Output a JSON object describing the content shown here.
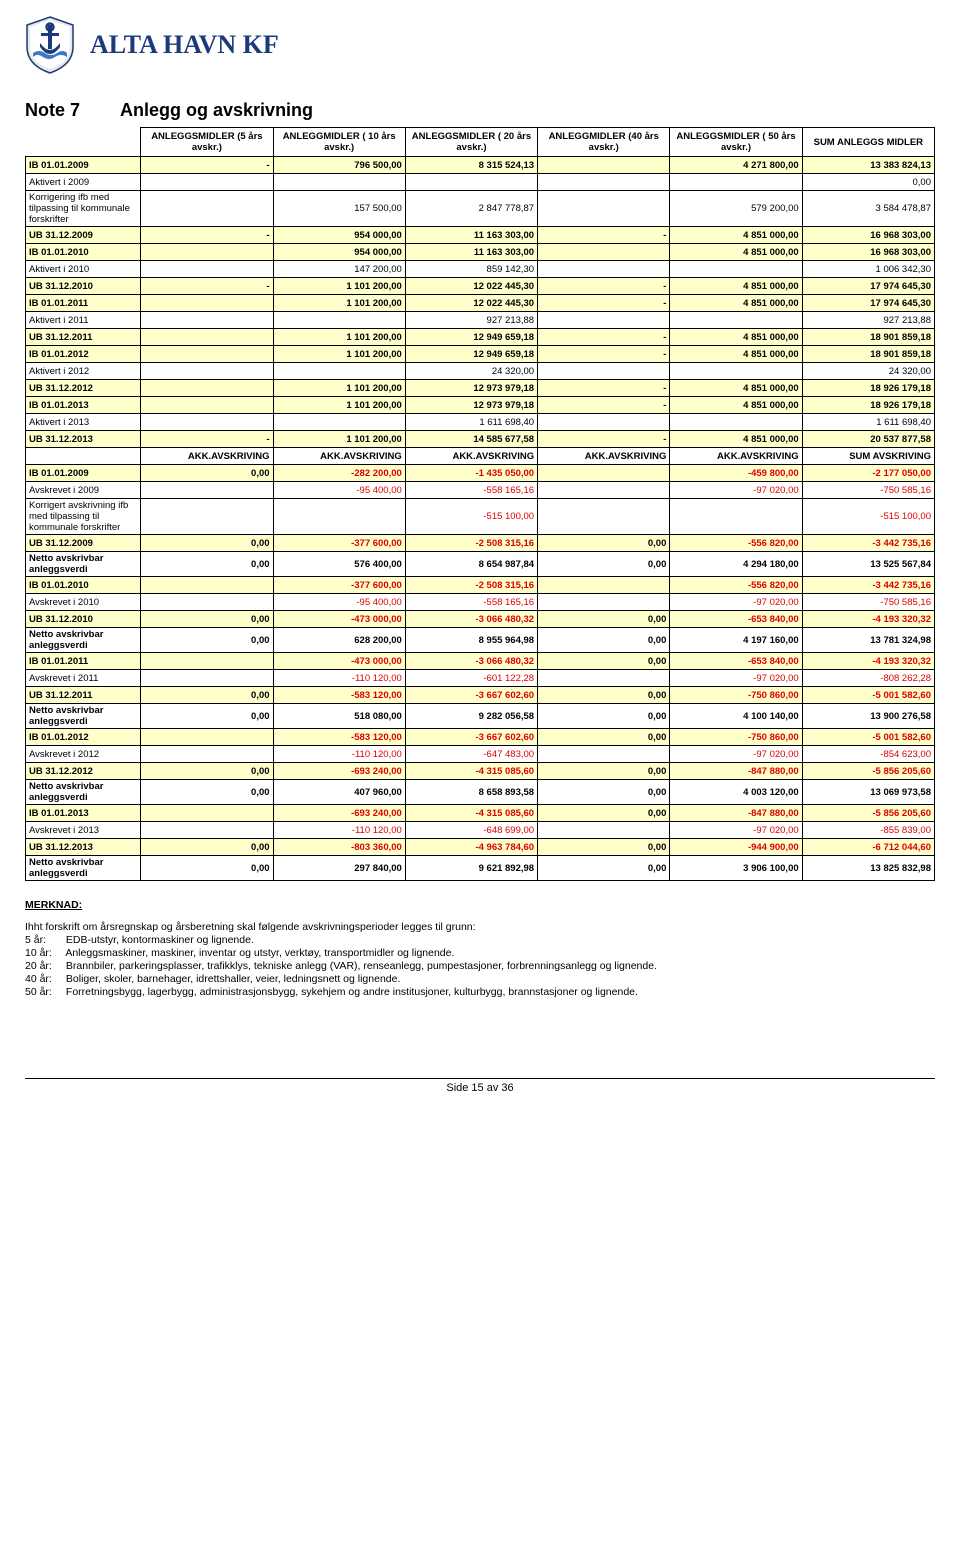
{
  "company": "ALTA HAVN KF",
  "note_label": "Note 7",
  "note_title": "Anlegg og avskrivning",
  "columns": [
    "",
    "ANLEGGSMIDLER (5 års avskr.)",
    "ANLEGGMIDLER ( 10 års avskr.)",
    "ANLEGGSMIDLER ( 20 års avskr.)",
    "ANLEGGMIDLER (40 års avskr.)",
    "ANLEGGSMIDLER ( 50 års avskr.)",
    "SUM ANLEGGS MIDLER"
  ],
  "rows": [
    {
      "cls": "yb",
      "cells": [
        "IB 01.01.2009",
        "-",
        "796 500,00",
        "8 315 524,13",
        "",
        "4 271 800,00",
        "13 383 824,13"
      ]
    },
    {
      "cls": "w",
      "cells": [
        "Aktivert i 2009",
        "",
        "",
        "",
        "",
        "",
        "0,00"
      ]
    },
    {
      "cls": "w",
      "cells": [
        "Korrigering ifb med tilpassing til kommunale forskrifter",
        "",
        "157 500,00",
        "2 847 778,87",
        "",
        "579 200,00",
        "3 584 478,87"
      ]
    },
    {
      "cls": "yb",
      "cells": [
        "UB 31.12.2009",
        "-",
        "954 000,00",
        "11 163 303,00",
        "-",
        "4 851 000,00",
        "16 968 303,00"
      ]
    },
    {
      "cls": "yb",
      "cells": [
        "IB 01.01.2010",
        "",
        "954 000,00",
        "11 163 303,00",
        "",
        "4 851 000,00",
        "16 968 303,00"
      ]
    },
    {
      "cls": "w",
      "cells": [
        "Aktivert i 2010",
        "",
        "147 200,00",
        "859 142,30",
        "",
        "",
        "1 006 342,30"
      ]
    },
    {
      "cls": "yb",
      "cells": [
        "UB 31.12.2010",
        "-",
        "1 101 200,00",
        "12 022 445,30",
        "-",
        "4 851 000,00",
        "17 974 645,30"
      ]
    },
    {
      "cls": "yb",
      "cells": [
        "IB 01.01.2011",
        "",
        "1 101 200,00",
        "12 022 445,30",
        "-",
        "4 851 000,00",
        "17 974 645,30"
      ]
    },
    {
      "cls": "w",
      "cells": [
        "Aktivert i 2011",
        "",
        "",
        "927 213,88",
        "",
        "",
        "927 213,88"
      ]
    },
    {
      "cls": "yb",
      "cells": [
        "UB 31.12.2011",
        "",
        "1 101 200,00",
        "12 949 659,18",
        "-",
        "4 851 000,00",
        "18 901 859,18"
      ]
    },
    {
      "cls": "yb",
      "cells": [
        "IB 01.01.2012",
        "",
        "1 101 200,00",
        "12 949 659,18",
        "-",
        "4 851 000,00",
        "18 901 859,18"
      ]
    },
    {
      "cls": "w",
      "cells": [
        "Aktivert i 2012",
        "",
        "",
        "24 320,00",
        "",
        "",
        "24 320,00"
      ]
    },
    {
      "cls": "yb",
      "cells": [
        "UB 31.12.2012",
        "",
        "1 101 200,00",
        "12 973 979,18",
        "-",
        "4 851 000,00",
        "18 926 179,18"
      ]
    },
    {
      "cls": "yb",
      "cells": [
        "IB 01.01.2013",
        "",
        "1 101 200,00",
        "12 973 979,18",
        "-",
        "4 851 000,00",
        "18 926 179,18"
      ]
    },
    {
      "cls": "w",
      "cells": [
        "Aktivert i 2013",
        "",
        "",
        "1 611 698,40",
        "",
        "",
        "1 611 698,40"
      ]
    },
    {
      "cls": "yb",
      "cells": [
        "UB 31.12.2013",
        "-",
        "1 101 200,00",
        "14 585 677,58",
        "-",
        "4 851 000,00",
        "20 537 877,58"
      ]
    },
    {
      "cls": "hdr",
      "cells": [
        "",
        "AKK.AVSKRIVING",
        "AKK.AVSKRIVING",
        "AKK.AVSKRIVING",
        "AKK.AVSKRIVING",
        "AKK.AVSKRIVING",
        "SUM AVSKRIVING"
      ]
    },
    {
      "cls": "ybr",
      "cells": [
        "IB 01.01.2009",
        "0,00",
        "-282 200,00",
        "-1 435 050,00",
        "",
        "-459 800,00",
        "-2 177 050,00"
      ]
    },
    {
      "cls": "wr",
      "cells": [
        "Avskrevet i 2009",
        "",
        "-95 400,00",
        "-558 165,16",
        "",
        "-97 020,00",
        "-750 585,16"
      ]
    },
    {
      "cls": "wr",
      "cells": [
        "Korrigert avskrivning ifb med tilpassing til kommunale forskrifter",
        "",
        "",
        "-515 100,00",
        "",
        "",
        "-515 100,00"
      ]
    },
    {
      "cls": "ybr",
      "cells": [
        "UB 31.12.2009",
        "0,00",
        "-377 600,00",
        "-2 508 315,16",
        "0,00",
        "-556 820,00",
        "-3 442 735,16"
      ]
    },
    {
      "cls": "wb",
      "cells": [
        "Netto avskrivbar anleggsverdi",
        "0,00",
        "576 400,00",
        "8 654 987,84",
        "0,00",
        "4 294 180,00",
        "13 525 567,84"
      ]
    },
    {
      "cls": "ybr",
      "cells": [
        "IB 01.01.2010",
        "",
        "-377 600,00",
        "-2 508 315,16",
        "",
        "-556 820,00",
        "-3 442 735,16"
      ]
    },
    {
      "cls": "wr",
      "cells": [
        "Avskrevet i 2010",
        "",
        "-95 400,00",
        "-558 165,16",
        "",
        "-97 020,00",
        "-750 585,16"
      ]
    },
    {
      "cls": "ybr",
      "cells": [
        "UB 31.12.2010",
        "0,00",
        "-473 000,00",
        "-3 066 480,32",
        "0,00",
        "-653 840,00",
        "-4 193 320,32"
      ]
    },
    {
      "cls": "wb",
      "cells": [
        "Netto avskrivbar anleggsverdi",
        "0,00",
        "628 200,00",
        "8 955 964,98",
        "0,00",
        "4 197 160,00",
        "13 781 324,98"
      ]
    },
    {
      "cls": "ybr",
      "cells": [
        "IB 01.01.2011",
        "",
        "-473 000,00",
        "-3 066 480,32",
        "0,00",
        "-653 840,00",
        "-4 193 320,32"
      ]
    },
    {
      "cls": "wr",
      "cells": [
        "Avskrevet i 2011",
        "",
        "-110 120,00",
        "-601 122,28",
        "",
        "-97 020,00",
        "-808 262,28"
      ]
    },
    {
      "cls": "ybr",
      "cells": [
        "UB 31.12.2011",
        "0,00",
        "-583 120,00",
        "-3 667 602,60",
        "0,00",
        "-750 860,00",
        "-5 001 582,60"
      ]
    },
    {
      "cls": "wb",
      "cells": [
        "Netto avskrivbar anleggsverdi",
        "0,00",
        "518 080,00",
        "9 282 056,58",
        "0,00",
        "4 100 140,00",
        "13 900 276,58"
      ]
    },
    {
      "cls": "ybr",
      "cells": [
        "IB 01.01.2012",
        "",
        "-583 120,00",
        "-3 667 602,60",
        "0,00",
        "-750 860,00",
        "-5 001 582,60"
      ]
    },
    {
      "cls": "wr",
      "cells": [
        "Avskrevet i 2012",
        "",
        "-110 120,00",
        "-647 483,00",
        "",
        "-97 020,00",
        "-854 623,00"
      ]
    },
    {
      "cls": "ybr",
      "cells": [
        "UB 31.12.2012",
        "0,00",
        "-693 240,00",
        "-4 315 085,60",
        "0,00",
        "-847 880,00",
        "-5 856 205,60"
      ]
    },
    {
      "cls": "wb",
      "cells": [
        "Netto avskrivbar anleggsverdi",
        "0,00",
        "407 960,00",
        "8 658 893,58",
        "0,00",
        "4 003 120,00",
        "13 069 973,58"
      ]
    },
    {
      "cls": "ybr",
      "cells": [
        "IB 01.01.2013",
        "",
        "-693 240,00",
        "-4 315 085,60",
        "0,00",
        "-847 880,00",
        "-5 856 205,60"
      ]
    },
    {
      "cls": "wr",
      "cells": [
        "Avskrevet i 2013",
        "",
        "-110 120,00",
        "-648 699,00",
        "",
        "-97 020,00",
        "-855 839,00"
      ]
    },
    {
      "cls": "ybr",
      "cells": [
        "UB 31.12.2013",
        "0,00",
        "-803 360,00",
        "-4 963 784,60",
        "0,00",
        "-944 900,00",
        "-6 712 044,60"
      ]
    },
    {
      "cls": "wb",
      "cells": [
        "Netto avskrivbar anleggsverdi",
        "0,00",
        "297 840,00",
        "9 621 892,98",
        "0,00",
        "3 906 100,00",
        "13 825 832,98"
      ]
    }
  ],
  "merknad_title": "MERKNAD:",
  "merknad_intro": "Ihht forskrift om årsregnskap og årsberetning skal følgende avskrivningsperioder legges til grunn:",
  "merknad_lines": [
    {
      "yr": "5 år:",
      "txt": "EDB-utstyr, kontormaskiner og lignende."
    },
    {
      "yr": "10 år:",
      "txt": "Anleggsmaskiner, maskiner, inventar og utstyr, verktøy, transportmidler og lignende."
    },
    {
      "yr": "20 år:",
      "txt": "Brannbiler, parkeringsplasser, trafikklys, tekniske anlegg (VAR), renseanlegg, pumpestasjoner, forbrenningsanlegg og lignende."
    },
    {
      "yr": "40 år:",
      "txt": "Boliger, skoler, barnehager, idrettshaller, veier, ledningsnett og lignende."
    },
    {
      "yr": "50 år:",
      "txt": "Forretningsbygg, lagerbygg, administrasjonsbygg, sykehjem og andre institusjoner, kulturbygg, brannstasjoner og lignende."
    }
  ],
  "footer": "Side 15 av 36"
}
